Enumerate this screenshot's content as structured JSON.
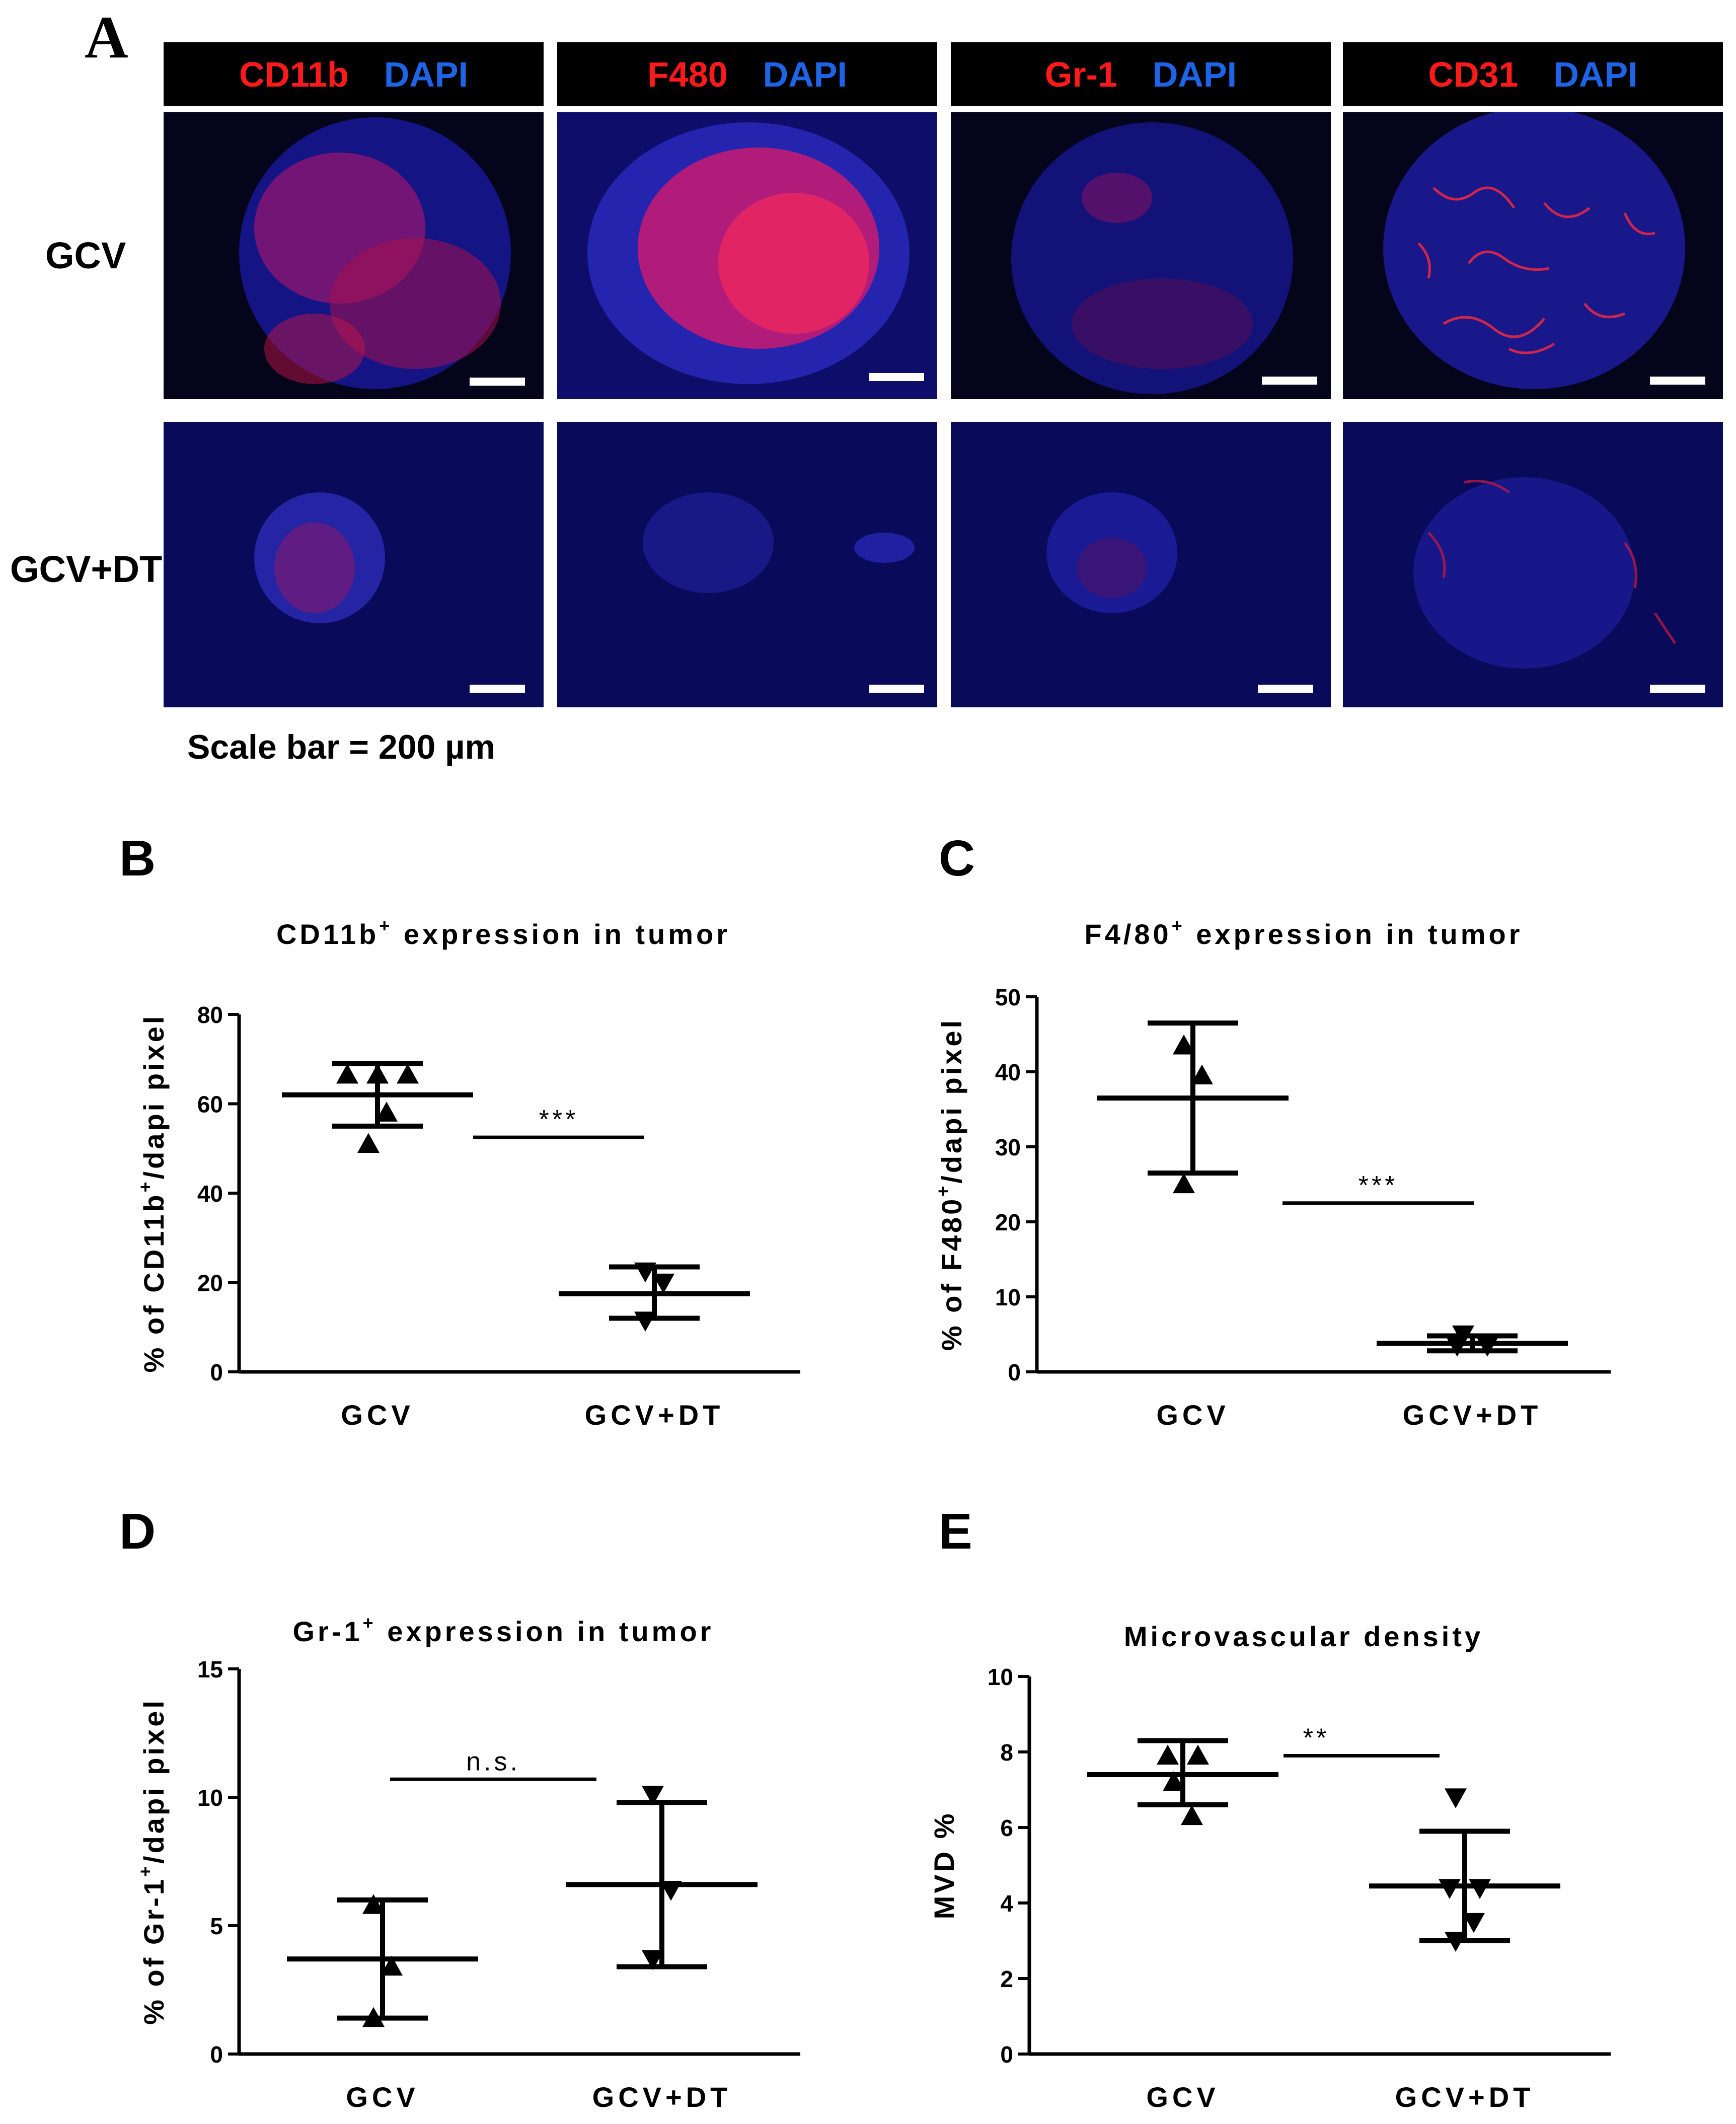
{
  "panel_a": {
    "letter": "A",
    "columns": [
      {
        "marker": "CD11b",
        "stain": "DAPI"
      },
      {
        "marker": "F480",
        "stain": "DAPI"
      },
      {
        "marker": "Gr-1",
        "stain": "DAPI"
      },
      {
        "marker": "CD31",
        "stain": "DAPI"
      }
    ],
    "rows": [
      "GCV",
      "GCV+DT"
    ],
    "scale_caption": "Scale bar = 200 µm",
    "colors": {
      "marker": "#ff1a1a",
      "dapi": "#1e64e6"
    }
  },
  "chart_data": [
    {
      "panel": "B",
      "type": "scatter",
      "title_base": "CD11b",
      "title_sup": "+",
      "title_rest": " expression in tumor",
      "ylabel_pre": "% of CD11b",
      "ylabel_sup": "+",
      "ylabel_post": "/dapi pixel",
      "ylim": [
        0,
        80
      ],
      "yticks": [
        0,
        20,
        40,
        60,
        80
      ],
      "categories": [
        "GCV",
        "GCV+DT"
      ],
      "groups": [
        {
          "marker": "triangle-up",
          "points": [
            66.5,
            66.5,
            66.5,
            58,
            51
          ],
          "mean": 62,
          "err_low": 55,
          "err_high": 69
        },
        {
          "marker": "triangle-down",
          "points": [
            22.5,
            20,
            11.5
          ],
          "mean": 17.5,
          "err_low": 12,
          "err_high": 23.5
        }
      ],
      "significance": "***"
    },
    {
      "panel": "C",
      "type": "scatter",
      "title_base": "F4/80",
      "title_sup": "+",
      "title_rest": " expression in tumor",
      "ylabel_pre": "% of F480",
      "ylabel_sup": "+",
      "ylabel_post": "/dapi pixel",
      "ylim": [
        0,
        50
      ],
      "yticks": [
        0,
        10,
        20,
        30,
        40,
        50
      ],
      "categories": [
        "GCV",
        "GCV+DT"
      ],
      "groups": [
        {
          "marker": "triangle-up",
          "points": [
            43.5,
            39.5,
            25
          ],
          "mean": 36.5,
          "err_low": 26.5,
          "err_high": 46.5
        },
        {
          "marker": "triangle-down",
          "points": [
            5,
            3.5,
            3.5
          ],
          "mean": 3.8,
          "err_low": 2.8,
          "err_high": 4.8
        },
        {
          "marker": "none",
          "points": [],
          "mean": null,
          "err_low": null,
          "err_high": null
        }
      ],
      "significance": "***"
    },
    {
      "panel": "D",
      "type": "scatter",
      "title_base": "Gr-1",
      "title_sup": "+",
      "title_rest": " expression in tumor",
      "ylabel_pre": "% of Gr-1",
      "ylabel_sup": "+",
      "ylabel_post": "/dapi pixel",
      "ylim": [
        0,
        15
      ],
      "yticks": [
        0,
        5,
        10,
        15
      ],
      "categories": [
        "GCV",
        "GCV+DT"
      ],
      "groups": [
        {
          "marker": "triangle-up",
          "points": [
            5.8,
            3.4,
            1.4
          ],
          "mean": 3.7,
          "err_low": 1.4,
          "err_high": 6.0
        },
        {
          "marker": "triangle-down",
          "points": [
            10.1,
            6.4,
            3.7
          ],
          "mean": 6.6,
          "err_low": 3.4,
          "err_high": 9.8
        }
      ],
      "significance": "n.s."
    },
    {
      "panel": "E",
      "type": "scatter",
      "title_base": "Microvascular density",
      "title_sup": "",
      "title_rest": "",
      "ylabel_pre": "MVD %",
      "ylabel_sup": "",
      "ylabel_post": "",
      "ylim": [
        0,
        10
      ],
      "yticks": [
        0,
        2,
        4,
        6,
        8,
        10
      ],
      "categories": [
        "GCV",
        "GCV+DT"
      ],
      "groups": [
        {
          "marker": "triangle-up",
          "points": [
            7.9,
            7.9,
            7.2,
            6.3
          ],
          "mean": 7.4,
          "err_low": 6.6,
          "err_high": 8.3
        },
        {
          "marker": "triangle-down",
          "points": [
            6.8,
            4.4,
            4.4,
            3.5,
            3.0
          ],
          "mean": 4.45,
          "err_low": 3.0,
          "err_high": 5.9
        }
      ],
      "significance": "**"
    }
  ]
}
